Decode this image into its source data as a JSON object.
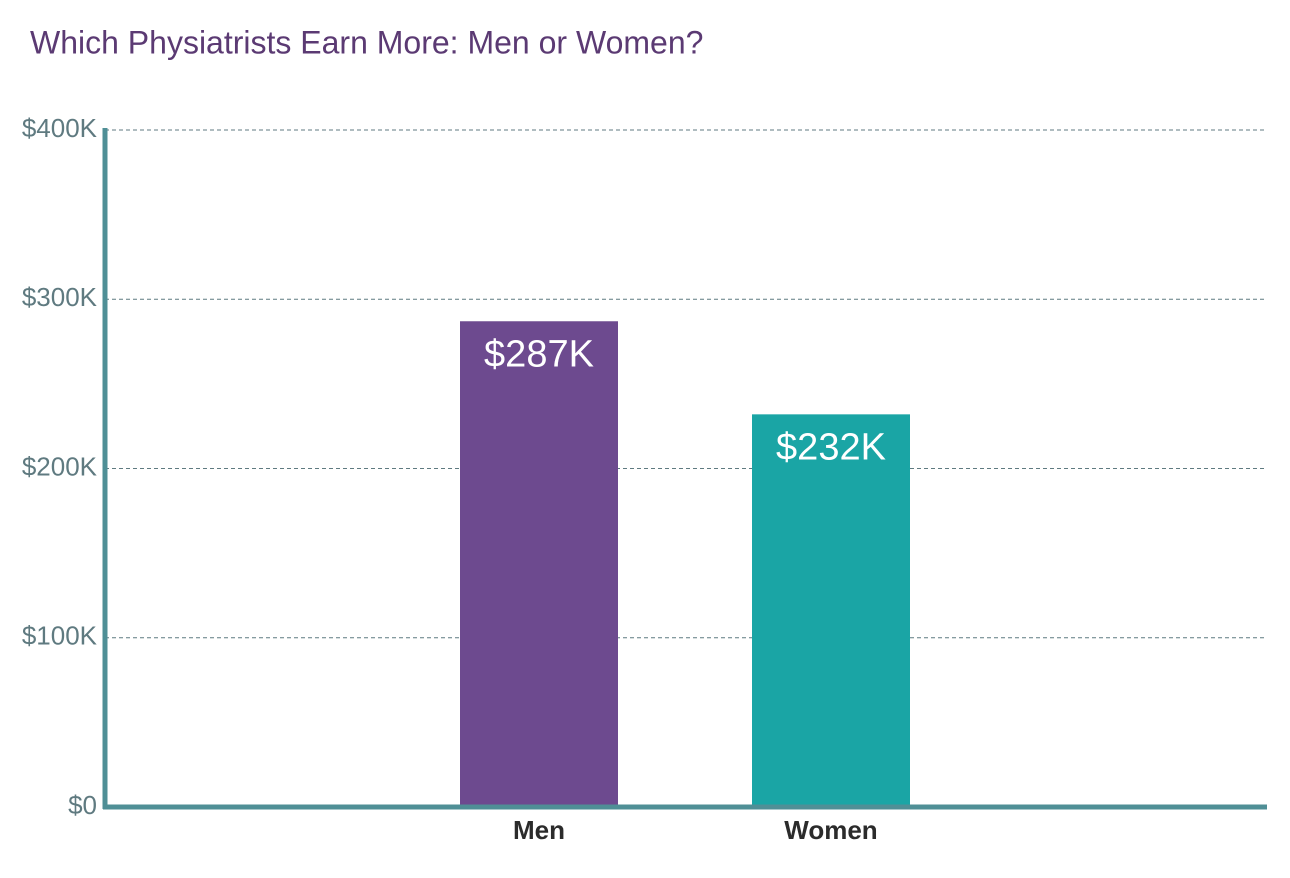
{
  "chart_data": {
    "type": "bar",
    "title": "Which Physiatrists Earn More: Men or Women?",
    "categories": [
      "Men",
      "Women"
    ],
    "values": [
      287000,
      232000
    ],
    "value_labels": [
      "$287K",
      "$232K"
    ],
    "colors": [
      "#6d4a8f",
      "#1aa5a5"
    ],
    "ylim": [
      0,
      400000
    ],
    "yticks": [
      {
        "value": 0,
        "label": "$0"
      },
      {
        "value": 100000,
        "label": "$100K"
      },
      {
        "value": 200000,
        "label": "$200K"
      },
      {
        "value": 300000,
        "label": "$300K"
      },
      {
        "value": 400000,
        "label": "$400K"
      }
    ],
    "grid": true
  }
}
